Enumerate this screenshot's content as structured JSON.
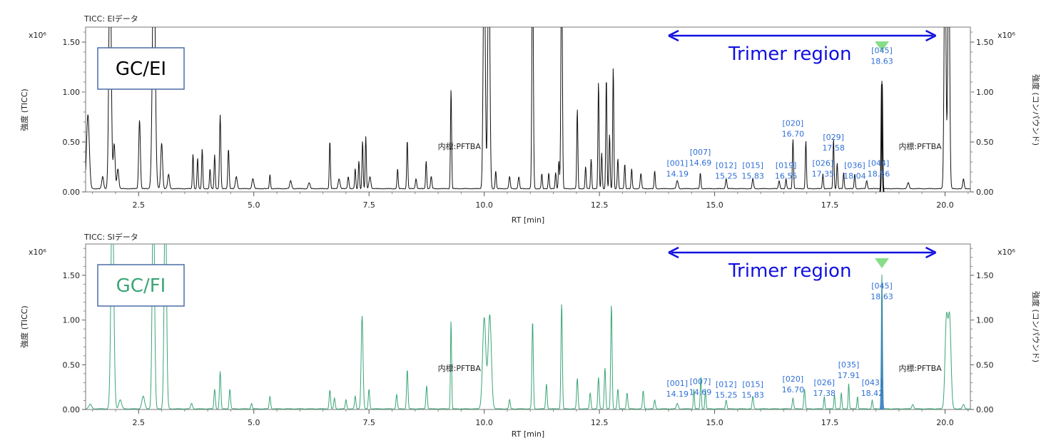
{
  "chart_data": [
    {
      "type": "line",
      "title": "TICC: EIデータ",
      "xlabel": "RT [min]",
      "ylabel": "強度 (TICC)",
      "ylabel_right": "強度 (コンパウンド)",
      "exponent": "x10⁶",
      "xlim": [
        1.35,
        20.55
      ],
      "ylim": [
        0,
        1.65
      ],
      "x_ticks": [
        "2.5",
        "5.0",
        "7.5",
        "10.0",
        "12.5",
        "15.0",
        "17.5",
        "20.0"
      ],
      "y_ticks": [
        "0.00",
        "0.50",
        "1.00",
        "1.50"
      ],
      "line_color": "#111111",
      "fill_color": "",
      "box_label": "GC/EI",
      "box_label_color": "#000000",
      "region_label": "Trimer region",
      "region_range": [
        14.0,
        19.8
      ],
      "internal_standard_labels": [
        "内標:PFTBA",
        "内標:PFTBA"
      ],
      "internal_standard_rt": [
        10.05,
        20.05
      ],
      "marker_rt": 18.63,
      "base_level": 0.03,
      "peaks": [
        {
          "rt": 1.4,
          "h": 0.74,
          "w": 0.03
        },
        {
          "rt": 1.72,
          "h": 0.12,
          "w": 0.02
        },
        {
          "rt": 1.88,
          "h": 2.5,
          "w": 0.025
        },
        {
          "rt": 1.97,
          "h": 0.45,
          "w": 0.02
        },
        {
          "rt": 2.05,
          "h": 0.2,
          "w": 0.02
        },
        {
          "rt": 2.52,
          "h": 0.69,
          "w": 0.018
        },
        {
          "rt": 2.83,
          "h": 2.5,
          "w": 0.03
        },
        {
          "rt": 3.0,
          "h": 0.46,
          "w": 0.02
        },
        {
          "rt": 3.15,
          "h": 0.14,
          "w": 0.02
        },
        {
          "rt": 3.68,
          "h": 0.35,
          "w": 0.012
        },
        {
          "rt": 3.78,
          "h": 0.31,
          "w": 0.012
        },
        {
          "rt": 3.88,
          "h": 0.4,
          "w": 0.012
        },
        {
          "rt": 4.05,
          "h": 0.2,
          "w": 0.012
        },
        {
          "rt": 4.15,
          "h": 0.34,
          "w": 0.012
        },
        {
          "rt": 4.27,
          "h": 0.74,
          "w": 0.014
        },
        {
          "rt": 4.45,
          "h": 0.4,
          "w": 0.014
        },
        {
          "rt": 4.62,
          "h": 0.12,
          "w": 0.02
        },
        {
          "rt": 4.98,
          "h": 0.1,
          "w": 0.02
        },
        {
          "rt": 5.35,
          "h": 0.14,
          "w": 0.012
        },
        {
          "rt": 5.8,
          "h": 0.08,
          "w": 0.02
        },
        {
          "rt": 6.2,
          "h": 0.06,
          "w": 0.02
        },
        {
          "rt": 6.65,
          "h": 0.48,
          "w": 0.012
        },
        {
          "rt": 6.85,
          "h": 0.1,
          "w": 0.02
        },
        {
          "rt": 7.05,
          "h": 0.12,
          "w": 0.015
        },
        {
          "rt": 7.2,
          "h": 0.2,
          "w": 0.012
        },
        {
          "rt": 7.28,
          "h": 0.28,
          "w": 0.012
        },
        {
          "rt": 7.36,
          "h": 0.48,
          "w": 0.012
        },
        {
          "rt": 7.43,
          "h": 0.52,
          "w": 0.012
        },
        {
          "rt": 7.52,
          "h": 0.12,
          "w": 0.02
        },
        {
          "rt": 8.12,
          "h": 0.2,
          "w": 0.012
        },
        {
          "rt": 8.33,
          "h": 0.49,
          "w": 0.012
        },
        {
          "rt": 8.52,
          "h": 0.1,
          "w": 0.015
        },
        {
          "rt": 8.74,
          "h": 0.28,
          "w": 0.012
        },
        {
          "rt": 8.85,
          "h": 0.12,
          "w": 0.015
        },
        {
          "rt": 9.28,
          "h": 1.0,
          "w": 0.012
        },
        {
          "rt": 10.0,
          "h": 2.5,
          "w": 0.022
        },
        {
          "rt": 10.1,
          "h": 2.5,
          "w": 0.022
        },
        {
          "rt": 10.25,
          "h": 0.18,
          "w": 0.012
        },
        {
          "rt": 10.55,
          "h": 0.12,
          "w": 0.015
        },
        {
          "rt": 10.75,
          "h": 0.12,
          "w": 0.015
        },
        {
          "rt": 11.05,
          "h": 2.5,
          "w": 0.015
        },
        {
          "rt": 11.25,
          "h": 0.15,
          "w": 0.012
        },
        {
          "rt": 11.4,
          "h": 0.16,
          "w": 0.012
        },
        {
          "rt": 11.55,
          "h": 0.16,
          "w": 0.012
        },
        {
          "rt": 11.62,
          "h": 0.28,
          "w": 0.012
        },
        {
          "rt": 11.68,
          "h": 2.5,
          "w": 0.015
        },
        {
          "rt": 12.02,
          "h": 0.8,
          "w": 0.012
        },
        {
          "rt": 12.2,
          "h": 0.22,
          "w": 0.012
        },
        {
          "rt": 12.32,
          "h": 0.3,
          "w": 0.012
        },
        {
          "rt": 12.48,
          "h": 1.07,
          "w": 0.012
        },
        {
          "rt": 12.55,
          "h": 0.36,
          "w": 0.012
        },
        {
          "rt": 12.65,
          "h": 1.12,
          "w": 0.012
        },
        {
          "rt": 12.72,
          "h": 0.55,
          "w": 0.012
        },
        {
          "rt": 12.8,
          "h": 1.22,
          "w": 0.012
        },
        {
          "rt": 12.9,
          "h": 0.3,
          "w": 0.012
        },
        {
          "rt": 13.05,
          "h": 0.25,
          "w": 0.012
        },
        {
          "rt": 13.2,
          "h": 0.2,
          "w": 0.012
        },
        {
          "rt": 13.4,
          "h": 0.15,
          "w": 0.015
        },
        {
          "rt": 13.7,
          "h": 0.18,
          "w": 0.012
        },
        {
          "rt": 14.19,
          "h": 0.08,
          "w": 0.02
        },
        {
          "rt": 14.69,
          "h": 0.16,
          "w": 0.012
        },
        {
          "rt": 15.25,
          "h": 0.1,
          "w": 0.015
        },
        {
          "rt": 15.83,
          "h": 0.1,
          "w": 0.015
        },
        {
          "rt": 16.4,
          "h": 0.08,
          "w": 0.015
        },
        {
          "rt": 16.55,
          "h": 0.1,
          "w": 0.012
        },
        {
          "rt": 16.7,
          "h": 0.5,
          "w": 0.012
        },
        {
          "rt": 16.98,
          "h": 0.48,
          "w": 0.012
        },
        {
          "rt": 17.35,
          "h": 0.15,
          "w": 0.012
        },
        {
          "rt": 17.58,
          "h": 0.5,
          "w": 0.012
        },
        {
          "rt": 17.66,
          "h": 0.26,
          "w": 0.012
        },
        {
          "rt": 17.8,
          "h": 0.16,
          "w": 0.012
        },
        {
          "rt": 18.04,
          "h": 0.15,
          "w": 0.012
        },
        {
          "rt": 18.3,
          "h": 0.08,
          "w": 0.015
        },
        {
          "rt": 18.63,
          "h": 1.08,
          "w": 0.012
        },
        {
          "rt": 19.2,
          "h": 0.06,
          "w": 0.02
        },
        {
          "rt": 20.0,
          "h": 2.5,
          "w": 0.02
        },
        {
          "rt": 20.08,
          "h": 2.5,
          "w": 0.02
        },
        {
          "rt": 20.4,
          "h": 0.1,
          "w": 0.015
        }
      ],
      "compound_labels": [
        {
          "id": "[001]",
          "rt_text": "14.19",
          "rt": 14.19,
          "y": 0.16
        },
        {
          "id": "[007]",
          "rt_text": "14.69",
          "rt": 14.69,
          "y": 0.27
        },
        {
          "id": "[012]",
          "rt_text": "15.25",
          "rt": 15.25,
          "y": 0.14
        },
        {
          "id": "[015]",
          "rt_text": "15.83",
          "rt": 15.83,
          "y": 0.14
        },
        {
          "id": "[019]",
          "rt_text": "16.55",
          "rt": 16.55,
          "y": 0.14
        },
        {
          "id": "[020]",
          "rt_text": "16.70",
          "rt": 16.7,
          "y": 0.56
        },
        {
          "id": "[026]",
          "rt_text": "17.35",
          "rt": 17.35,
          "y": 0.16
        },
        {
          "id": "[029]",
          "rt_text": "17.58",
          "rt": 17.58,
          "y": 0.42
        },
        {
          "id": "[036]",
          "rt_text": "18.04",
          "rt": 18.04,
          "y": 0.14
        },
        {
          "id": "[044]",
          "rt_text": "18.56",
          "rt": 18.56,
          "y": 0.16
        },
        {
          "id": "[045]",
          "rt_text": "18.63",
          "rt": 18.63,
          "y": 1.29
        }
      ]
    },
    {
      "type": "line",
      "title": "TICC: SIデータ",
      "xlabel": "RT [min]",
      "ylabel": "強度 (TICC)",
      "ylabel_right": "強度 (コンパウンド)",
      "exponent": "x10⁶",
      "xlim": [
        1.35,
        20.55
      ],
      "ylim": [
        0,
        1.85
      ],
      "x_ticks": [
        "2.5",
        "5.0",
        "7.5",
        "10.0",
        "12.5",
        "15.0",
        "17.5",
        "20.0"
      ],
      "y_ticks": [
        "0.00",
        "0.50",
        "1.00",
        "1.50"
      ],
      "line_color": "#3aa577",
      "fill_color": "#2f6fd6",
      "box_label": "GC/FI",
      "box_label_color": "#3aa577",
      "region_label": "Trimer region",
      "region_range": [
        14.0,
        19.8
      ],
      "internal_standard_labels": [
        "内標:PFTBA",
        "内標:PFTBA"
      ],
      "internal_standard_rt": [
        10.05,
        20.05
      ],
      "marker_rt": 18.63,
      "base_level": 0.005,
      "peaks": [
        {
          "rt": 1.45,
          "h": 0.05,
          "w": 0.03
        },
        {
          "rt": 1.93,
          "h": 2.5,
          "w": 0.03
        },
        {
          "rt": 2.1,
          "h": 0.1,
          "w": 0.03
        },
        {
          "rt": 2.6,
          "h": 0.14,
          "w": 0.03
        },
        {
          "rt": 2.82,
          "h": 2.5,
          "w": 0.025
        },
        {
          "rt": 3.08,
          "h": 2.5,
          "w": 0.025
        },
        {
          "rt": 3.65,
          "h": 0.06,
          "w": 0.02
        },
        {
          "rt": 4.15,
          "h": 0.22,
          "w": 0.015
        },
        {
          "rt": 4.27,
          "h": 0.42,
          "w": 0.015
        },
        {
          "rt": 4.48,
          "h": 0.22,
          "w": 0.015
        },
        {
          "rt": 4.95,
          "h": 0.06,
          "w": 0.015
        },
        {
          "rt": 5.35,
          "h": 0.14,
          "w": 0.015
        },
        {
          "rt": 6.65,
          "h": 0.21,
          "w": 0.015
        },
        {
          "rt": 6.75,
          "h": 0.12,
          "w": 0.015
        },
        {
          "rt": 7.0,
          "h": 0.1,
          "w": 0.015
        },
        {
          "rt": 7.2,
          "h": 0.14,
          "w": 0.015
        },
        {
          "rt": 7.35,
          "h": 1.04,
          "w": 0.02
        },
        {
          "rt": 7.5,
          "h": 0.22,
          "w": 0.015
        },
        {
          "rt": 8.1,
          "h": 0.16,
          "w": 0.015
        },
        {
          "rt": 8.33,
          "h": 0.44,
          "w": 0.015
        },
        {
          "rt": 8.75,
          "h": 0.26,
          "w": 0.015
        },
        {
          "rt": 9.28,
          "h": 0.99,
          "w": 0.012
        },
        {
          "rt": 10.0,
          "h": 1.02,
          "w": 0.035
        },
        {
          "rt": 10.12,
          "h": 1.05,
          "w": 0.035
        },
        {
          "rt": 10.55,
          "h": 0.1,
          "w": 0.015
        },
        {
          "rt": 11.05,
          "h": 0.98,
          "w": 0.015
        },
        {
          "rt": 11.35,
          "h": 0.28,
          "w": 0.015
        },
        {
          "rt": 11.68,
          "h": 1.18,
          "w": 0.015
        },
        {
          "rt": 12.02,
          "h": 0.34,
          "w": 0.015
        },
        {
          "rt": 12.3,
          "h": 0.18,
          "w": 0.015
        },
        {
          "rt": 12.48,
          "h": 0.35,
          "w": 0.015
        },
        {
          "rt": 12.62,
          "h": 0.46,
          "w": 0.015
        },
        {
          "rt": 12.76,
          "h": 1.16,
          "w": 0.015
        },
        {
          "rt": 12.9,
          "h": 0.22,
          "w": 0.015
        },
        {
          "rt": 13.1,
          "h": 0.18,
          "w": 0.015
        },
        {
          "rt": 13.45,
          "h": 0.2,
          "w": 0.015
        },
        {
          "rt": 13.7,
          "h": 0.1,
          "w": 0.015
        },
        {
          "rt": 14.19,
          "h": 0.06,
          "w": 0.02
        },
        {
          "rt": 14.55,
          "h": 0.22,
          "w": 0.012
        },
        {
          "rt": 14.7,
          "h": 0.36,
          "w": 0.012
        },
        {
          "rt": 14.8,
          "h": 0.22,
          "w": 0.012
        },
        {
          "rt": 15.25,
          "h": 0.1,
          "w": 0.015
        },
        {
          "rt": 15.83,
          "h": 0.14,
          "w": 0.015
        },
        {
          "rt": 16.7,
          "h": 0.12,
          "w": 0.015
        },
        {
          "rt": 16.95,
          "h": 0.22,
          "w": 0.015
        },
        {
          "rt": 17.38,
          "h": 0.14,
          "w": 0.012
        },
        {
          "rt": 17.6,
          "h": 0.16,
          "w": 0.012
        },
        {
          "rt": 17.75,
          "h": 0.18,
          "w": 0.012
        },
        {
          "rt": 17.91,
          "h": 0.28,
          "w": 0.012
        },
        {
          "rt": 18.1,
          "h": 0.14,
          "w": 0.012
        },
        {
          "rt": 18.42,
          "h": 0.1,
          "w": 0.012
        },
        {
          "rt": 18.63,
          "h": 1.5,
          "w": 0.012
        },
        {
          "rt": 19.3,
          "h": 0.05,
          "w": 0.02
        },
        {
          "rt": 20.03,
          "h": 1.0,
          "w": 0.03
        },
        {
          "rt": 20.1,
          "h": 1.0,
          "w": 0.03
        },
        {
          "rt": 20.4,
          "h": 0.05,
          "w": 0.02
        }
      ],
      "compound_labels": [
        {
          "id": "[001]",
          "rt_text": "14.19",
          "rt": 14.19,
          "y": 0.15
        },
        {
          "id": "[007]",
          "rt_text": "14.69",
          "rt": 14.69,
          "y": 0.17
        },
        {
          "id": "[012]",
          "rt_text": "15.25",
          "rt": 15.25,
          "y": 0.14
        },
        {
          "id": "[015]",
          "rt_text": "15.83",
          "rt": 15.83,
          "y": 0.14
        },
        {
          "id": "[020]",
          "rt_text": "16.70",
          "rt": 16.7,
          "y": 0.2
        },
        {
          "id": "[026]",
          "rt_text": "17.38",
          "rt": 17.38,
          "y": 0.16
        },
        {
          "id": "[035]",
          "rt_text": "17.91",
          "rt": 17.91,
          "y": 0.36
        },
        {
          "id": "[043]",
          "rt_text": "18.42",
          "rt": 18.42,
          "y": 0.16
        },
        {
          "id": "[045]",
          "rt_text": "18.63",
          "rt": 18.63,
          "y": 1.24
        }
      ]
    }
  ]
}
